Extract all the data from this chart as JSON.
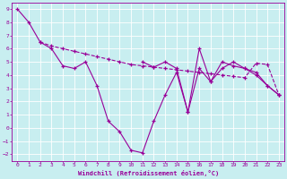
{
  "xlabel": "Windchill (Refroidissement éolien,°C)",
  "x_all": [
    0,
    1,
    2,
    3,
    4,
    5,
    6,
    7,
    8,
    9,
    10,
    11,
    12,
    13,
    14,
    15,
    16,
    17,
    18,
    19,
    20,
    21,
    22,
    23
  ],
  "line1": [
    9,
    8,
    6.5,
    6.0,
    4.7,
    4.5,
    5.0,
    3.2,
    0.5,
    -0.3,
    -1.7,
    -1.9,
    0.5,
    2.5,
    4.2,
    1.2,
    4.5,
    3.5,
    5.0,
    4.7,
    4.5,
    4.2,
    3.2,
    2.5
  ],
  "line2_x": [
    2,
    3,
    4,
    5,
    6,
    7,
    8,
    9,
    10,
    11,
    12,
    13,
    14,
    15,
    16,
    17,
    18,
    19,
    20,
    21,
    22,
    23
  ],
  "line2_y": [
    6.5,
    6.2,
    6.0,
    5.8,
    5.6,
    5.4,
    5.2,
    5.0,
    4.8,
    4.7,
    4.6,
    4.5,
    4.4,
    4.3,
    4.2,
    4.1,
    4.0,
    3.9,
    3.8,
    4.9,
    4.8,
    2.5
  ],
  "line3_x": [
    11,
    12,
    13,
    14,
    15,
    16,
    17,
    18,
    19,
    20,
    21,
    22,
    23
  ],
  "line3_y": [
    5.0,
    4.6,
    5.0,
    4.5,
    1.2,
    6.0,
    3.5,
    4.5,
    5.0,
    4.5,
    4.0,
    3.2,
    2.5
  ],
  "ylim": [
    -2.5,
    9.5
  ],
  "xlim": [
    -0.5,
    23.5
  ],
  "yticks": [
    -2,
    -1,
    0,
    1,
    2,
    3,
    4,
    5,
    6,
    7,
    8,
    9
  ],
  "xticks": [
    0,
    1,
    2,
    3,
    4,
    5,
    6,
    7,
    8,
    9,
    10,
    11,
    12,
    13,
    14,
    15,
    16,
    17,
    18,
    19,
    20,
    21,
    22,
    23
  ],
  "line_color": "#990099",
  "bg_color": "#c8eef0",
  "grid_color": "#b0dde0"
}
